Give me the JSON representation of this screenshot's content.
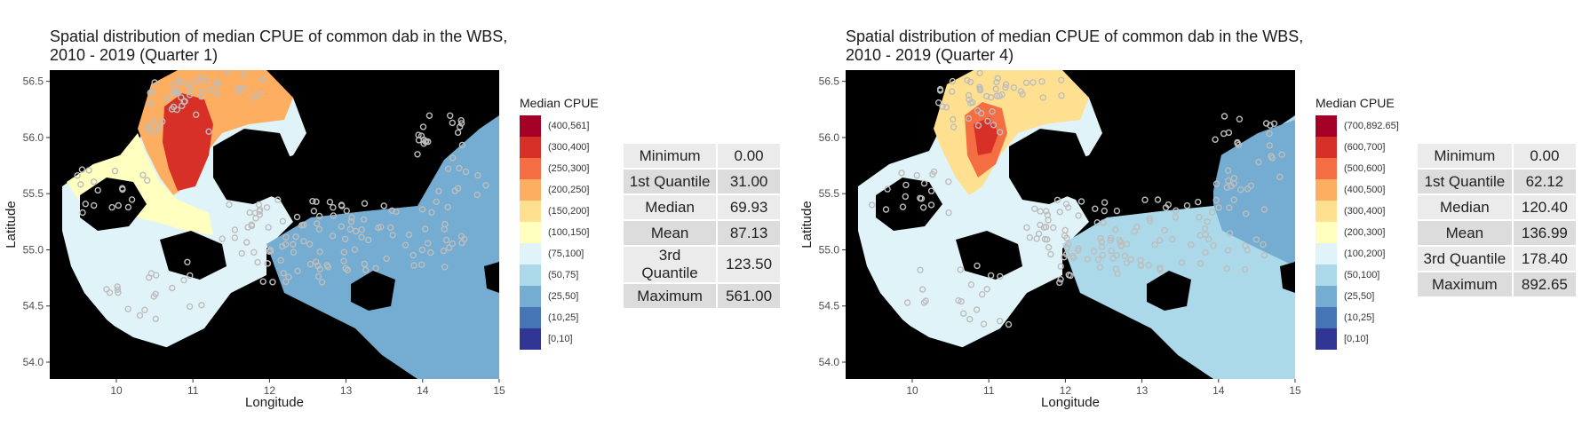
{
  "chart_data": [
    {
      "type": "heatmap",
      "title_lines": [
        "Spatial distribution of median CPUE of common dab in the WBS,",
        "2010 - 2019 (Quarter 1)"
      ],
      "xlabel": "Longitude",
      "ylabel": "Latitude",
      "x_ticks": [
        "10",
        "11",
        "12",
        "13",
        "14",
        "15"
      ],
      "y_ticks": [
        "54.0",
        "54.5",
        "55.0",
        "55.5",
        "56.0",
        "56.5"
      ],
      "xlim": [
        9.13,
        15.0
      ],
      "ylim": [
        53.85,
        56.6
      ],
      "legend_title": "Median CPUE",
      "legend": [
        "(400,561]",
        "(300,400]",
        "(250,300]",
        "(200,250]",
        "(150,200]",
        "(100,150]",
        "(75,100]",
        "(50,75]",
        "(25,50]",
        "(10,25]",
        "[0,10]"
      ],
      "legend_colors": [
        "#a50026",
        "#d73027",
        "#f46d43",
        "#fdae61",
        "#fee090",
        "#ffffbf",
        "#e0f3f8",
        "#abd9e9",
        "#74add1",
        "#4575b4",
        "#313695"
      ],
      "land_color": "#000000",
      "points_color": "#bdbdbd",
      "stats": [
        {
          "label": "Minimum",
          "value": "0.00"
        },
        {
          "label": "1st Quantile",
          "value": "31.00"
        },
        {
          "label": "Median",
          "value": "69.93"
        },
        {
          "label": "Mean",
          "value": "87.13"
        },
        {
          "label": "3rd Quantile",
          "value": "123.50"
        },
        {
          "label": "Maximum",
          "value": "561.00"
        }
      ]
    },
    {
      "type": "heatmap",
      "title_lines": [
        "Spatial distribution of median CPUE of common dab in the WBS,",
        "2010 - 2019 (Quarter 4)"
      ],
      "xlabel": "Longitude",
      "ylabel": "Latitude",
      "x_ticks": [
        "10",
        "11",
        "12",
        "13",
        "14",
        "15"
      ],
      "y_ticks": [
        "54.0",
        "54.5",
        "55.0",
        "55.5",
        "56.0",
        "56.5"
      ],
      "xlim": [
        9.13,
        15.0
      ],
      "ylim": [
        53.85,
        56.6
      ],
      "legend_title": "Median CPUE",
      "legend": [
        "(700,892.65]",
        "(600,700]",
        "(500,600]",
        "(400,500]",
        "(300,400]",
        "(200,300]",
        "(100,200]",
        "(50,100]",
        "(25,50]",
        "(10,25]",
        "[0,10]"
      ],
      "legend_colors": [
        "#a50026",
        "#d73027",
        "#f46d43",
        "#fdae61",
        "#fee090",
        "#ffffbf",
        "#e0f3f8",
        "#abd9e9",
        "#74add1",
        "#4575b4",
        "#313695"
      ],
      "land_color": "#000000",
      "points_color": "#bdbdbd",
      "stats": [
        {
          "label": "Minimum",
          "value": "0.00"
        },
        {
          "label": "1st Quantile",
          "value": "62.12"
        },
        {
          "label": "Median",
          "value": "120.40"
        },
        {
          "label": "Mean",
          "value": "136.99"
        },
        {
          "label": "3rd Quantile",
          "value": "178.40"
        },
        {
          "label": "Maximum",
          "value": "892.65"
        }
      ]
    }
  ]
}
